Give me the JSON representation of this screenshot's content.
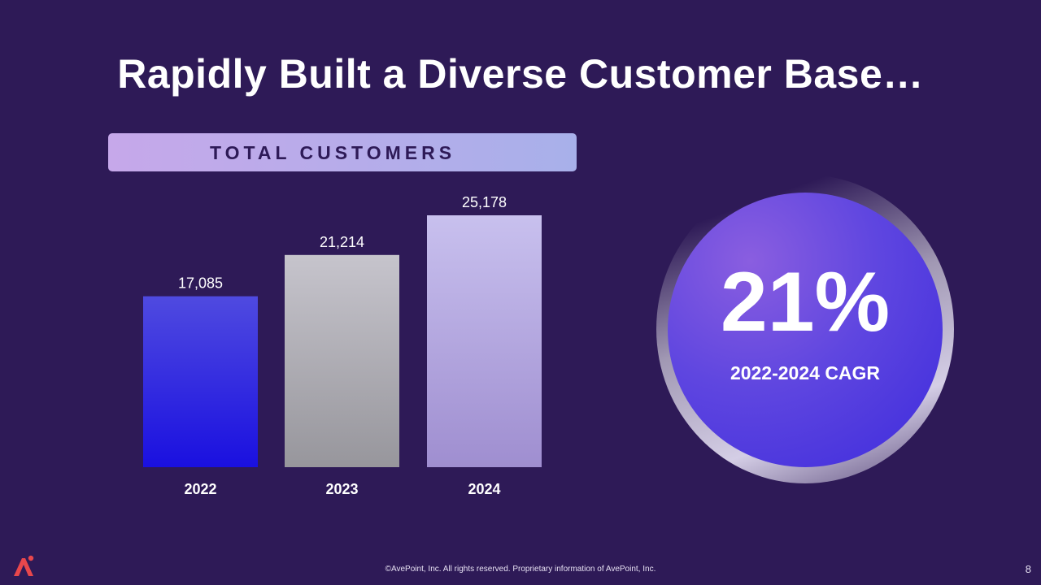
{
  "slide": {
    "title": "Rapidly Built a Diverse Customer Base…",
    "banner_label": "TOTAL CUSTOMERS",
    "cagr_value": "21%",
    "cagr_label": "2022-2024 CAGR",
    "footer": "©AvePoint, Inc. All rights reserved. Proprietary information of AvePoint, Inc.",
    "page_number": "8"
  },
  "chart_data": {
    "type": "bar",
    "title": "TOTAL CUSTOMERS",
    "categories": [
      "2022",
      "2023",
      "2024"
    ],
    "values": [
      17085,
      21214,
      25178
    ],
    "value_labels": [
      "17,085",
      "21,214",
      "25,178"
    ],
    "xlabel": "",
    "ylabel": "",
    "ylim": [
      0,
      25178
    ],
    "grid": false,
    "legend": "none"
  },
  "colors": {
    "background": "#2e1a57",
    "banner_start": "#c6a8ea",
    "banner_end": "#a8b0ea",
    "bar_2022_top": "#4f4ae0",
    "bar_2022_bottom": "#1a10e0",
    "bar_2023_top": "#c6c4cc",
    "bar_2023_bottom": "#97969c",
    "bar_2024_top": "#c8c0ee",
    "bar_2024_bottom": "#9f8ed0",
    "circle": "#5f46e0",
    "logo": "#e8474c"
  }
}
